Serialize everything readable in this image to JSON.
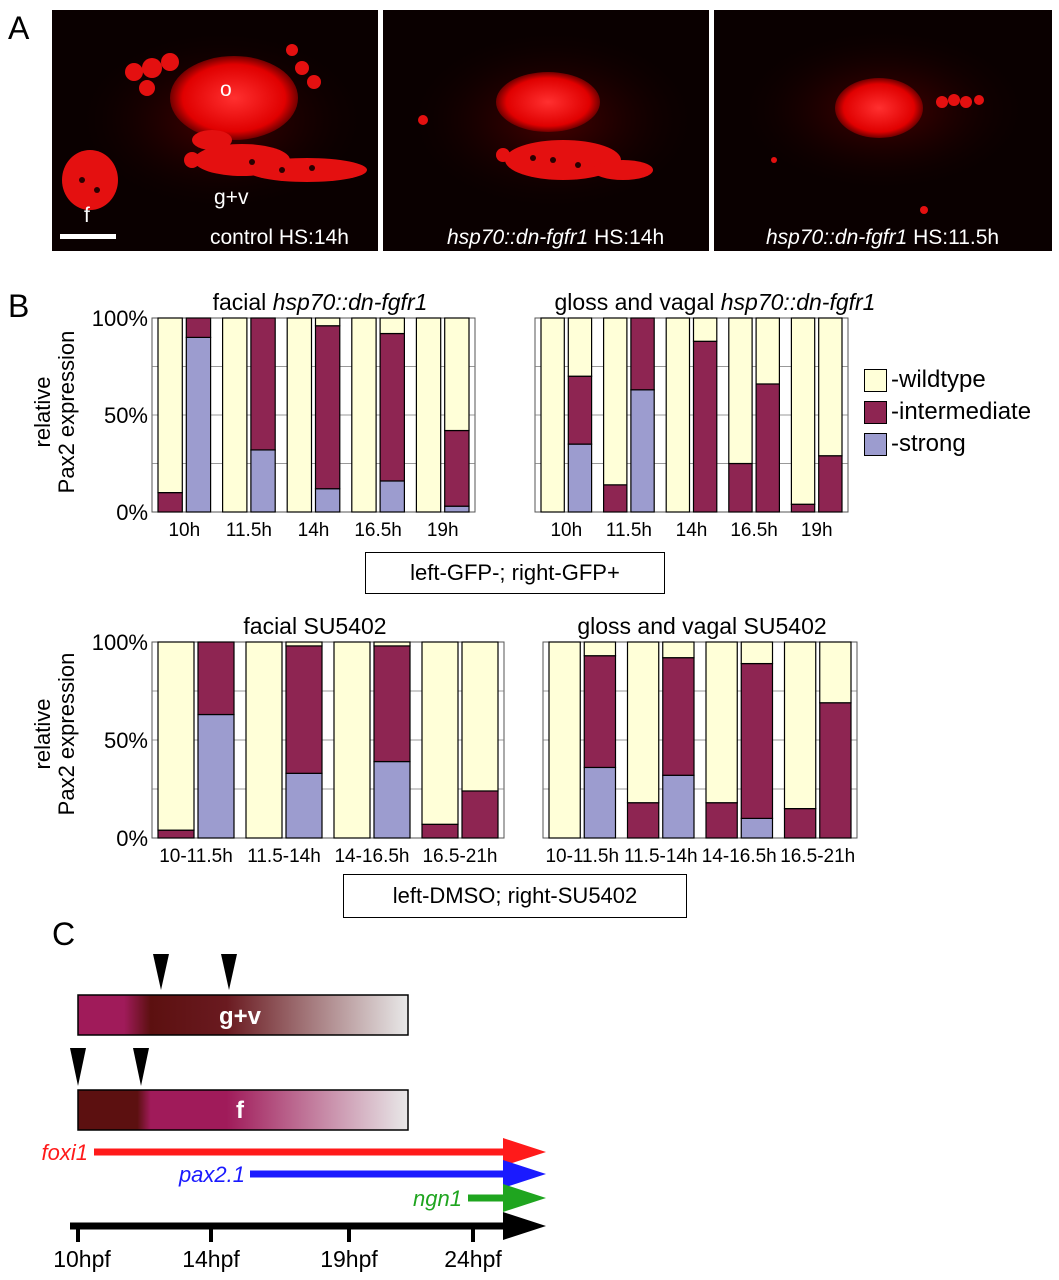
{
  "panels": {
    "a": "A",
    "b": "B",
    "c": "C"
  },
  "micrographs": [
    {
      "label_plain": "control HS:14h",
      "label_italic": "",
      "label_suffix": ""
    },
    {
      "label_plain": "",
      "label_italic": "hsp70::dn-fgfr1",
      "label_suffix": " HS:14h"
    },
    {
      "label_plain": "",
      "label_italic": "hsp70::dn-fgfr1",
      "label_suffix": " HS:11.5h"
    }
  ],
  "micro_annotations": {
    "otic": "o",
    "ganglia": "g+v",
    "facial": "f"
  },
  "y_axis_label_line1": "relative",
  "y_axis_label_line2": "Pax2 expression",
  "legend": [
    {
      "label": "-wildtype",
      "color": "#FFFFD8"
    },
    {
      "label": "-intermediate",
      "color": "#8E2552"
    },
    {
      "label": "-strong",
      "color": "#9C9CCF"
    }
  ],
  "condition_labels": {
    "heatshock": "left-GFP-; right-GFP+",
    "drug": "left-DMSO; right-SU5402"
  },
  "chart_data": [
    {
      "type": "bar",
      "stacked": true,
      "title_plain": "facial ",
      "title_italic": "hsp70::dn-fgfr1",
      "categories": [
        "10h",
        "11.5h",
        "14h",
        "16.5h",
        "19h"
      ],
      "yticks": [
        "100%",
        "50%",
        "0%"
      ],
      "ylim": [
        0,
        100
      ],
      "pairs": [
        [
          {
            "strong": 0,
            "intermediate": 10,
            "wildtype": 90
          },
          {
            "strong": 90,
            "intermediate": 10,
            "wildtype": 0
          }
        ],
        [
          {
            "strong": 0,
            "intermediate": 0,
            "wildtype": 100
          },
          {
            "strong": 32,
            "intermediate": 68,
            "wildtype": 0
          }
        ],
        [
          {
            "strong": 0,
            "intermediate": 0,
            "wildtype": 100
          },
          {
            "strong": 12,
            "intermediate": 84,
            "wildtype": 4
          }
        ],
        [
          {
            "strong": 0,
            "intermediate": 0,
            "wildtype": 100
          },
          {
            "strong": 16,
            "intermediate": 76,
            "wildtype": 8
          }
        ],
        [
          {
            "strong": 0,
            "intermediate": 0,
            "wildtype": 100
          },
          {
            "strong": 3,
            "intermediate": 39,
            "wildtype": 58
          }
        ]
      ]
    },
    {
      "type": "bar",
      "stacked": true,
      "title_plain": "gloss and vagal ",
      "title_italic": "hsp70::dn-fgfr1",
      "categories": [
        "10h",
        "11.5h",
        "14h",
        "16.5h",
        "19h"
      ],
      "yticks": [],
      "ylim": [
        0,
        100
      ],
      "pairs": [
        [
          {
            "strong": 0,
            "intermediate": 0,
            "wildtype": 100
          },
          {
            "strong": 35,
            "intermediate": 35,
            "wildtype": 30
          }
        ],
        [
          {
            "strong": 0,
            "intermediate": 14,
            "wildtype": 86
          },
          {
            "strong": 63,
            "intermediate": 37,
            "wildtype": 0
          }
        ],
        [
          {
            "strong": 0,
            "intermediate": 0,
            "wildtype": 100
          },
          {
            "strong": 0,
            "intermediate": 88,
            "wildtype": 12
          }
        ],
        [
          {
            "strong": 0,
            "intermediate": 25,
            "wildtype": 75
          },
          {
            "strong": 0,
            "intermediate": 66,
            "wildtype": 34
          }
        ],
        [
          {
            "strong": 0,
            "intermediate": 4,
            "wildtype": 96
          },
          {
            "strong": 0,
            "intermediate": 29,
            "wildtype": 71
          }
        ]
      ]
    },
    {
      "type": "bar",
      "stacked": true,
      "title_plain": "facial SU5402",
      "title_italic": "",
      "categories": [
        "10-11.5h",
        "11.5-14h",
        "14-16.5h",
        "16.5-21h"
      ],
      "yticks": [
        "100%",
        "50%",
        "0%"
      ],
      "ylim": [
        0,
        100
      ],
      "pairs": [
        [
          {
            "strong": 0,
            "intermediate": 4,
            "wildtype": 96
          },
          {
            "strong": 63,
            "intermediate": 37,
            "wildtype": 0
          }
        ],
        [
          {
            "strong": 0,
            "intermediate": 0,
            "wildtype": 100
          },
          {
            "strong": 33,
            "intermediate": 65,
            "wildtype": 2
          }
        ],
        [
          {
            "strong": 0,
            "intermediate": 0,
            "wildtype": 100
          },
          {
            "strong": 39,
            "intermediate": 59,
            "wildtype": 2
          }
        ],
        [
          {
            "strong": 0,
            "intermediate": 7,
            "wildtype": 93
          },
          {
            "strong": 0,
            "intermediate": 24,
            "wildtype": 76
          }
        ]
      ]
    },
    {
      "type": "bar",
      "stacked": true,
      "title_plain": "gloss and vagal SU5402",
      "title_italic": "",
      "categories": [
        "10-11.5h",
        "11.5-14h",
        "14-16.5h",
        "16.5-21h"
      ],
      "yticks": [],
      "ylim": [
        0,
        100
      ],
      "pairs": [
        [
          {
            "strong": 0,
            "intermediate": 0,
            "wildtype": 100
          },
          {
            "strong": 36,
            "intermediate": 57,
            "wildtype": 7
          }
        ],
        [
          {
            "strong": 0,
            "intermediate": 18,
            "wildtype": 82
          },
          {
            "strong": 32,
            "intermediate": 60,
            "wildtype": 8
          }
        ],
        [
          {
            "strong": 0,
            "intermediate": 18,
            "wildtype": 82
          },
          {
            "strong": 10,
            "intermediate": 79,
            "wildtype": 11
          }
        ],
        [
          {
            "strong": 0,
            "intermediate": 15,
            "wildtype": 85
          },
          {
            "strong": 0,
            "intermediate": 69,
            "wildtype": 31
          }
        ]
      ]
    }
  ],
  "timeline": {
    "bars": [
      {
        "label": "g+v"
      },
      {
        "label": "f"
      }
    ],
    "genes": [
      {
        "name": "foxi1",
        "color": "#FF1A1A"
      },
      {
        "name": "pax2.1",
        "color": "#1A1AFF"
      },
      {
        "name": "ngn1",
        "color": "#1FA51F"
      }
    ],
    "ticks": [
      "10hpf",
      "14hpf",
      "19hpf",
      "24hpf"
    ]
  }
}
